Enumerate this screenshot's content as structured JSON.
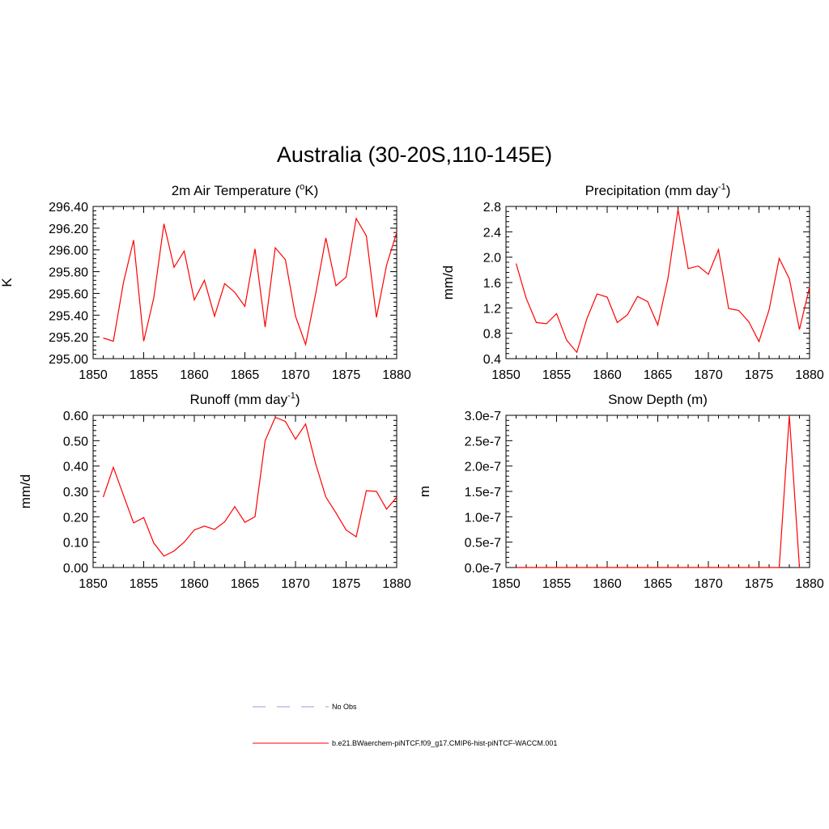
{
  "title": "Australia (30-20S,110-145E)",
  "colors": {
    "model": "#ff0000",
    "obs": "#9999dd",
    "axis": "#000000"
  },
  "legend": [
    {
      "label": "No Obs",
      "style": "dashed",
      "color": "#9999dd"
    },
    {
      "label": "b.e21.BWaerchem-piNTCF.f09_g17.CMIP6-hist-piNTCF-WACCM.001",
      "style": "solid",
      "color": "#ff0000"
    }
  ],
  "chart_data": [
    {
      "type": "line",
      "title": "2m Air Temperature (",
      "title_sup": "o",
      "title_after": "K)",
      "ylabel": "K",
      "xlim": [
        1850,
        1880
      ],
      "ylim": [
        295.0,
        296.4
      ],
      "xticks": [
        1850,
        1855,
        1860,
        1865,
        1870,
        1875,
        1880
      ],
      "yticks": [
        295.0,
        295.2,
        295.4,
        295.6,
        295.8,
        296.0,
        296.2,
        296.4
      ],
      "ytick_labels": [
        "295.00",
        "295.20",
        "295.40",
        "295.60",
        "295.80",
        "296.00",
        "296.20",
        "296.40"
      ],
      "x": [
        1851,
        1852,
        1853,
        1854,
        1855,
        1856,
        1857,
        1858,
        1859,
        1860,
        1861,
        1862,
        1863,
        1864,
        1865,
        1866,
        1867,
        1868,
        1869,
        1870,
        1871,
        1872,
        1873,
        1874,
        1875,
        1876,
        1877,
        1878,
        1879,
        1880
      ],
      "series": [
        {
          "values": [
            295.19,
            295.16,
            295.7,
            296.09,
            295.16,
            295.56,
            296.24,
            295.84,
            295.99,
            295.54,
            295.72,
            295.39,
            295.69,
            295.61,
            295.48,
            296.01,
            295.29,
            296.02,
            295.91,
            295.39,
            295.13,
            295.6,
            296.11,
            295.67,
            295.75,
            296.29,
            296.13,
            295.38,
            295.86,
            296.16
          ]
        }
      ]
    },
    {
      "type": "line",
      "title": "Precipitation (mm day",
      "title_sup": "-1",
      "title_after": ")",
      "ylabel": "mm/d",
      "xlim": [
        1850,
        1880
      ],
      "ylim": [
        0.4,
        2.8
      ],
      "xticks": [
        1850,
        1855,
        1860,
        1865,
        1870,
        1875,
        1880
      ],
      "yticks": [
        0.4,
        0.8,
        1.2,
        1.6,
        2.0,
        2.4,
        2.8
      ],
      "ytick_labels": [
        "0.4",
        "0.8",
        "1.2",
        "1.6",
        "2.0",
        "2.4",
        "2.8"
      ],
      "x": [
        1851,
        1852,
        1853,
        1854,
        1855,
        1856,
        1857,
        1858,
        1859,
        1860,
        1861,
        1862,
        1863,
        1864,
        1865,
        1866,
        1867,
        1868,
        1869,
        1870,
        1871,
        1872,
        1873,
        1874,
        1875,
        1876,
        1877,
        1878,
        1879,
        1880
      ],
      "series": [
        {
          "values": [
            1.9,
            1.35,
            0.97,
            0.95,
            1.11,
            0.69,
            0.5,
            1.03,
            1.42,
            1.37,
            0.97,
            1.09,
            1.38,
            1.3,
            0.93,
            1.66,
            2.75,
            1.82,
            1.86,
            1.73,
            2.12,
            1.19,
            1.16,
            0.98,
            0.67,
            1.17,
            1.98,
            1.66,
            0.86,
            1.53
          ]
        }
      ]
    },
    {
      "type": "line",
      "title": "Runoff (mm day",
      "title_sup": "-1",
      "title_after": ")",
      "ylabel": "mm/d",
      "xlim": [
        1850,
        1880
      ],
      "ylim": [
        0.0,
        0.6
      ],
      "xticks": [
        1850,
        1855,
        1860,
        1865,
        1870,
        1875,
        1880
      ],
      "yticks": [
        0.0,
        0.1,
        0.2,
        0.3,
        0.4,
        0.5,
        0.6
      ],
      "ytick_labels": [
        "0.00",
        "0.10",
        "0.20",
        "0.30",
        "0.40",
        "0.50",
        "0.60"
      ],
      "x": [
        1851,
        1852,
        1853,
        1854,
        1855,
        1856,
        1857,
        1858,
        1859,
        1860,
        1861,
        1862,
        1863,
        1864,
        1865,
        1866,
        1867,
        1868,
        1869,
        1870,
        1871,
        1872,
        1873,
        1874,
        1875,
        1876,
        1877,
        1878,
        1879,
        1880
      ],
      "series": [
        {
          "values": [
            0.277,
            0.395,
            0.285,
            0.176,
            0.197,
            0.096,
            0.045,
            0.065,
            0.1,
            0.148,
            0.163,
            0.15,
            0.18,
            0.24,
            0.178,
            0.2,
            0.5,
            0.592,
            0.576,
            0.506,
            0.566,
            0.408,
            0.278,
            0.215,
            0.148,
            0.121,
            0.303,
            0.3,
            0.23,
            0.277
          ]
        }
      ]
    },
    {
      "type": "line",
      "title": "Snow Depth (m)",
      "title_sup": "",
      "title_after": "",
      "ylabel": "m",
      "xlim": [
        1850,
        1880
      ],
      "ylim": [
        0.0,
        3e-07
      ],
      "xticks": [
        1850,
        1855,
        1860,
        1865,
        1870,
        1875,
        1880
      ],
      "yticks": [
        0.0,
        5e-08,
        1e-07,
        1.5e-07,
        2e-07,
        2.5e-07,
        3e-07
      ],
      "ytick_labels": [
        "0.0e-7",
        "0.5e-7",
        "1.0e-7",
        "1.5e-7",
        "2.0e-7",
        "2.5e-7",
        "3.0e-7"
      ],
      "x": [
        1851,
        1852,
        1853,
        1854,
        1855,
        1856,
        1857,
        1858,
        1859,
        1860,
        1861,
        1862,
        1863,
        1864,
        1865,
        1866,
        1867,
        1868,
        1869,
        1870,
        1871,
        1872,
        1873,
        1874,
        1875,
        1876,
        1877,
        1878,
        1879
      ],
      "series": [
        {
          "values": [
            0,
            0,
            0,
            0,
            0,
            0,
            0,
            0,
            0,
            0,
            0,
            0,
            0,
            0,
            0,
            0,
            0,
            0,
            0,
            0,
            0,
            0,
            0,
            0,
            0,
            0,
            0,
            3e-07,
            0
          ]
        }
      ]
    }
  ]
}
